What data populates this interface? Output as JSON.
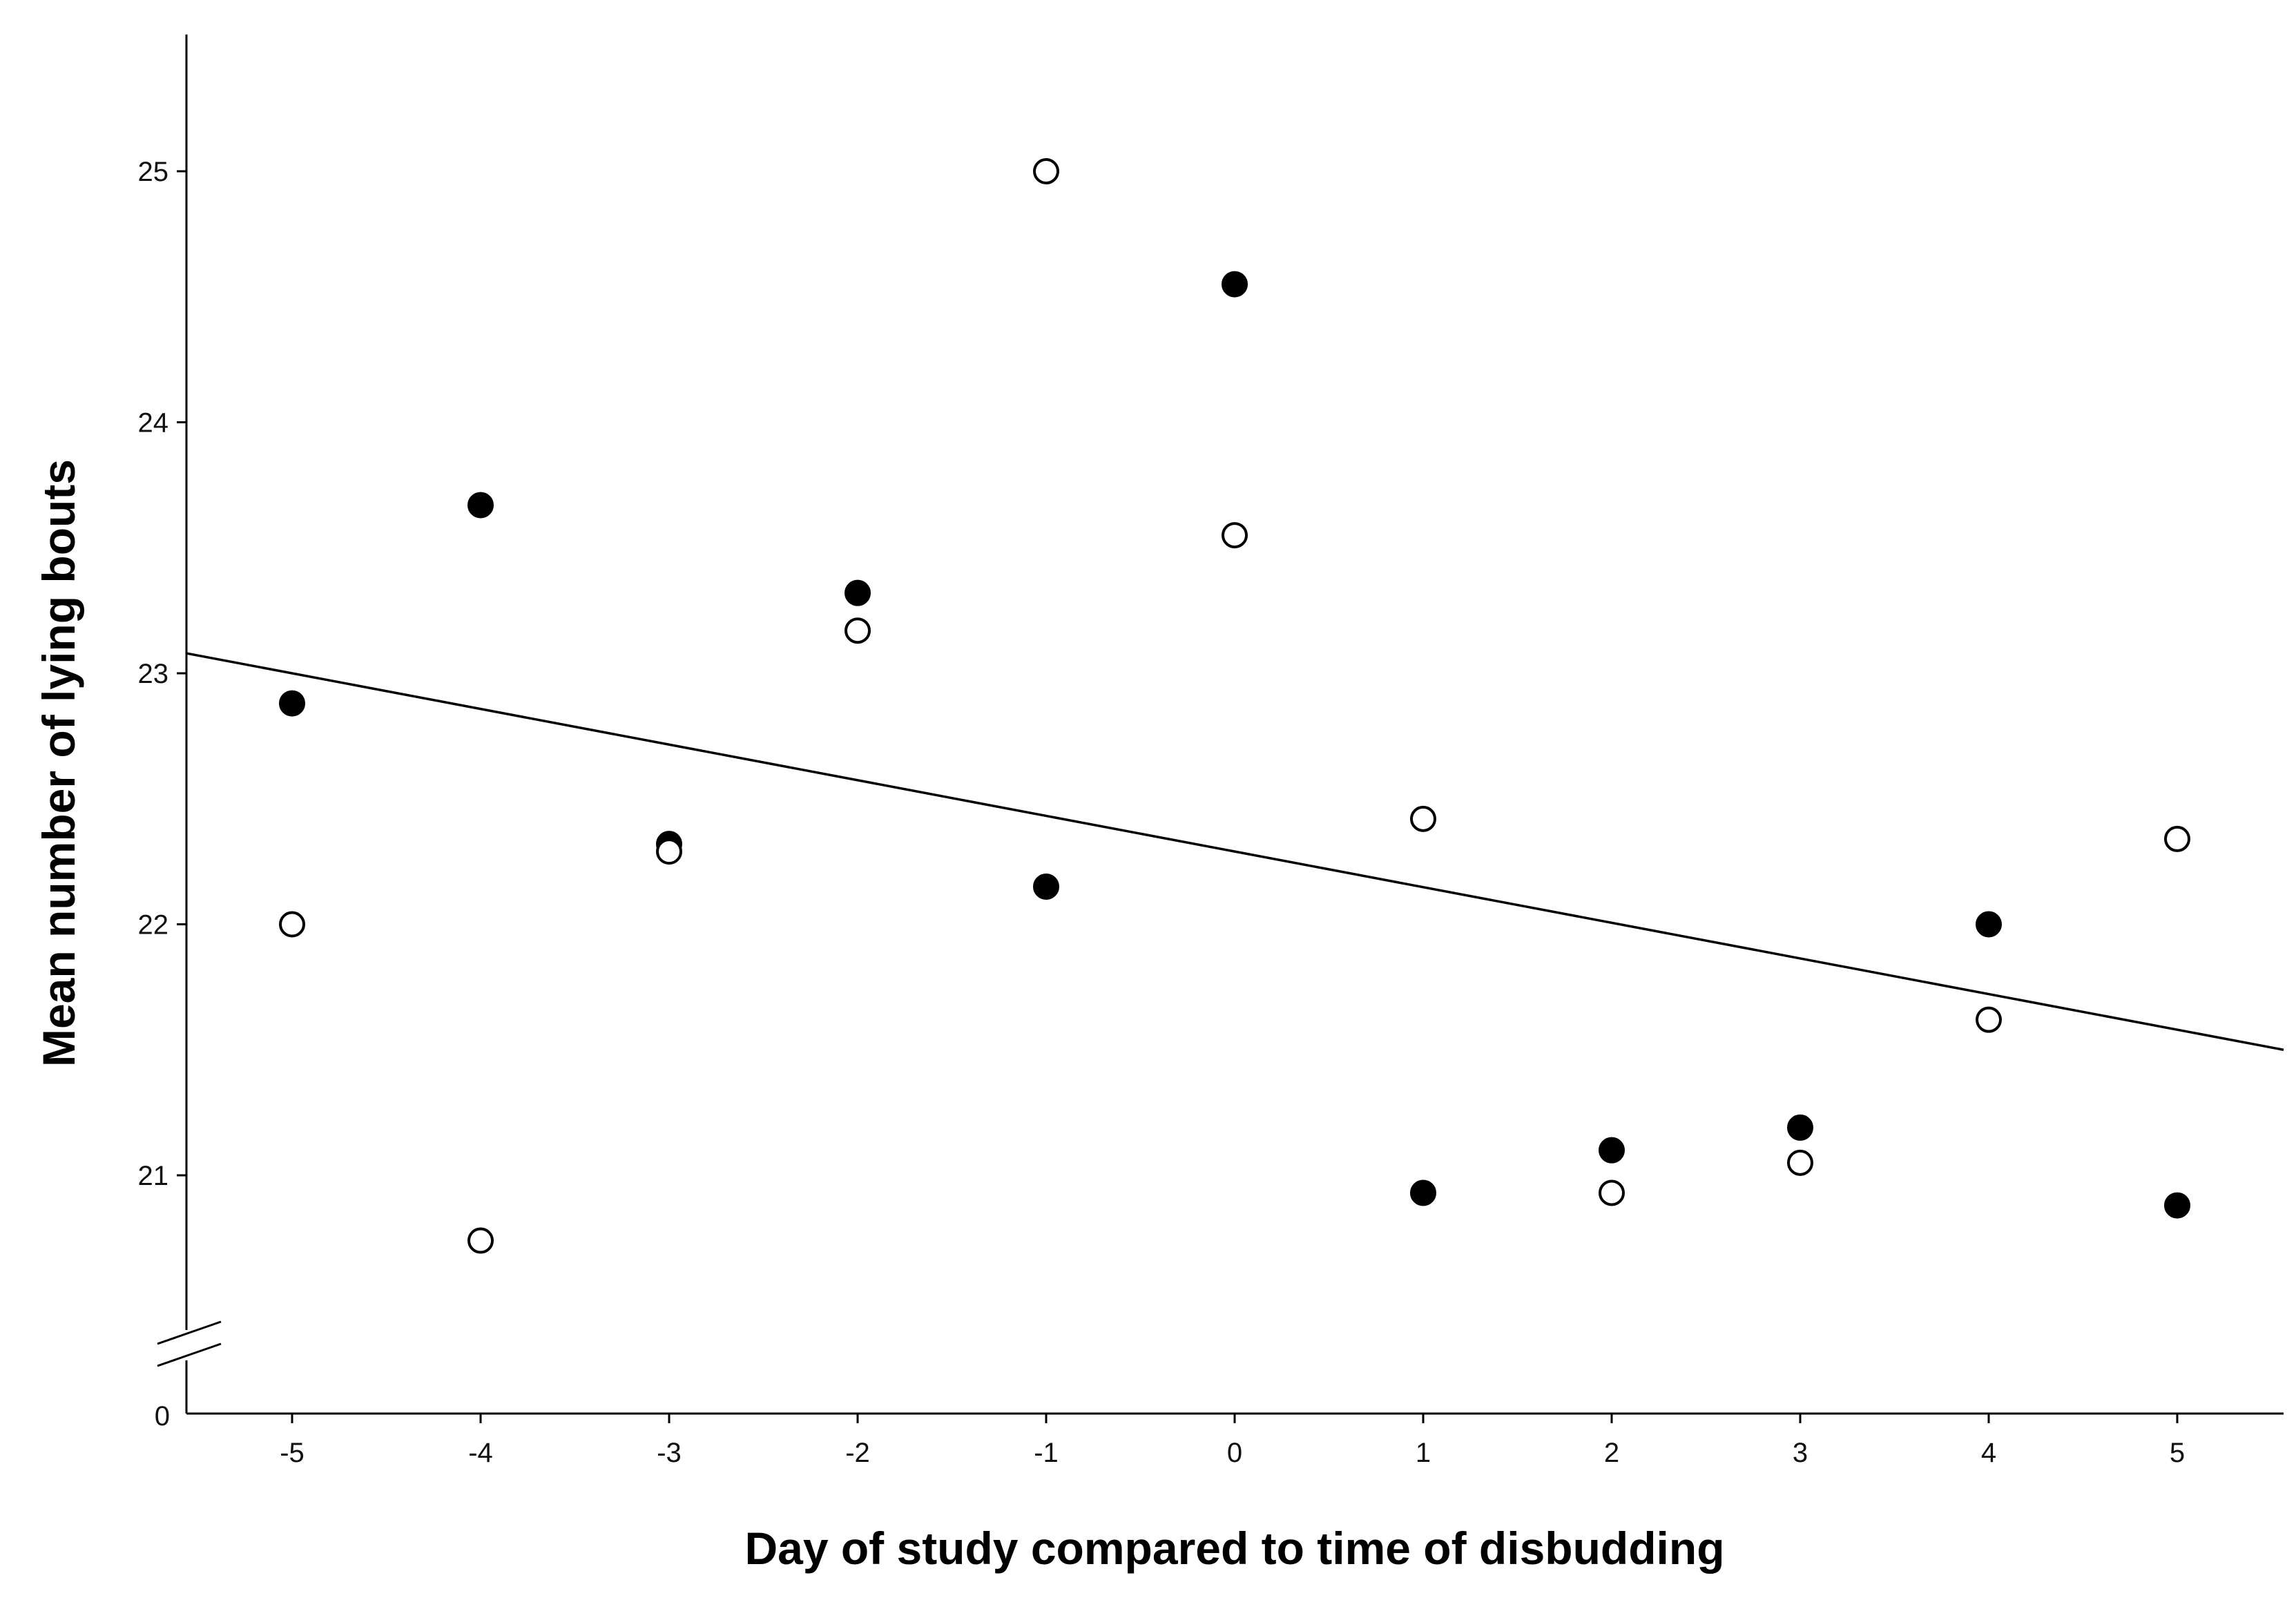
{
  "chart_data": {
    "type": "scatter",
    "title": "",
    "xlabel": "Day of study compared to time of disbudding",
    "ylabel": "Mean number of lying bouts",
    "x_ticks": [
      -5,
      -4,
      -3,
      -2,
      -1,
      0,
      1,
      2,
      3,
      4,
      5
    ],
    "x_tick_labels": [
      "-5",
      "-4",
      "-3",
      "-2",
      "-1",
      "0",
      "1",
      "2",
      "3",
      "4",
      "5"
    ],
    "xlim": [
      -5.55,
      5.55
    ],
    "y_ticks": [
      21,
      22,
      23,
      24,
      25
    ],
    "y_tick_labels": [
      "21",
      "22",
      "23",
      "24",
      "25"
    ],
    "ylim": [
      20.45,
      25.55
    ],
    "y_origin_label": "0",
    "y_axis_break": true,
    "grid": false,
    "series": [
      {
        "name": "filled",
        "marker": "filled-circle",
        "x": [
          -5,
          -4,
          -3,
          -2,
          -1,
          0,
          1,
          2,
          3,
          4,
          5
        ],
        "y": [
          22.88,
          23.67,
          22.32,
          23.32,
          22.15,
          24.55,
          20.93,
          21.1,
          21.19,
          22.0,
          20.88
        ]
      },
      {
        "name": "open",
        "marker": "open-circle",
        "x": [
          -5,
          -4,
          -3,
          -2,
          -1,
          0,
          1,
          2,
          3,
          4,
          5
        ],
        "y": [
          22.0,
          20.74,
          22.29,
          23.17,
          25.0,
          23.55,
          22.42,
          20.93,
          21.05,
          21.62,
          22.34
        ]
      }
    ],
    "fit_line": {
      "intercept": 22.29,
      "slope": -0.142
    }
  }
}
